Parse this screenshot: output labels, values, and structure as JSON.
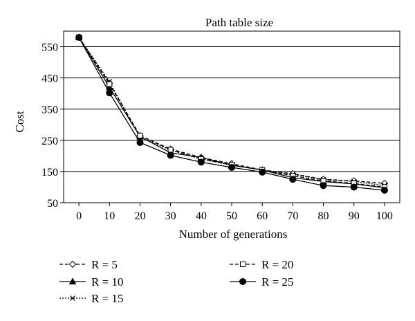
{
  "chart_data": {
    "type": "line",
    "title": "Path table size",
    "xlabel": "Number of generations",
    "ylabel": "Cost",
    "x": [
      0,
      10,
      20,
      30,
      40,
      50,
      60,
      70,
      80,
      90,
      100
    ],
    "xlim": [
      -5,
      105
    ],
    "ylim": [
      50,
      600
    ],
    "yticks": [
      50,
      150,
      250,
      350,
      450,
      550
    ],
    "grid": "horizontal",
    "legend_position": "bottom",
    "series": [
      {
        "name": "R = 5",
        "marker": "diamond-open",
        "dash": "5,3",
        "values": [
          580,
          432,
          265,
          222,
          195,
          175,
          155,
          143,
          125,
          120,
          112
        ]
      },
      {
        "name": "R = 10",
        "marker": "triangle-filled",
        "dash": "",
        "values": [
          580,
          420,
          262,
          210,
          195,
          170,
          155,
          130,
          118,
          110,
          98
        ]
      },
      {
        "name": "R = 15",
        "marker": "x",
        "dash": "2,2",
        "values": [
          580,
          438,
          260,
          218,
          190,
          170,
          155,
          140,
          124,
          118,
          105
        ]
      },
      {
        "name": "R = 20",
        "marker": "square-open",
        "dash": "5,3",
        "values": [
          580,
          430,
          265,
          220,
          190,
          172,
          155,
          136,
          120,
          112,
          100
        ]
      },
      {
        "name": "R = 25",
        "marker": "circle-filled",
        "dash": "",
        "values": [
          580,
          402,
          243,
          202,
          180,
          163,
          148,
          125,
          105,
          100,
          90
        ]
      }
    ]
  }
}
